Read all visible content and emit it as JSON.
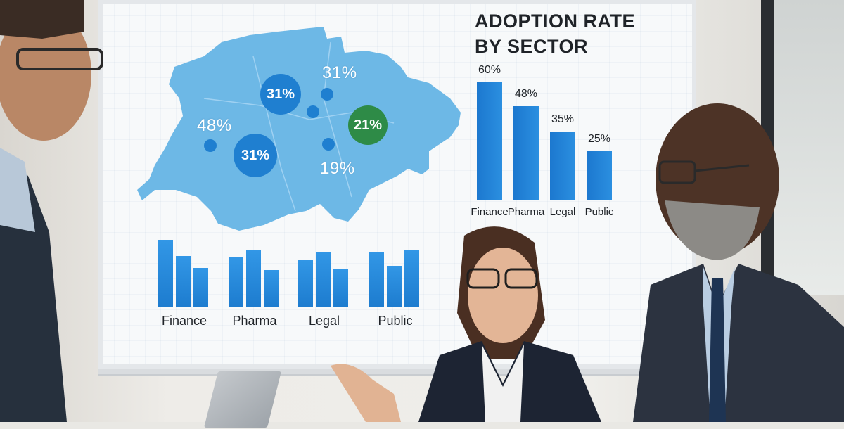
{
  "slide": {
    "title_line1": "ADOPTION RATE",
    "title_line2": "BY SECTOR"
  },
  "map_labels": [
    {
      "text": "31%",
      "style": "text"
    },
    {
      "text": "31%",
      "style": "bubble"
    },
    {
      "text": "48%",
      "style": "text"
    },
    {
      "text": "21%",
      "style": "bubble-green"
    },
    {
      "text": "31%",
      "style": "bubble"
    },
    {
      "text": "19%",
      "style": "text"
    }
  ],
  "chart_data": {
    "type": "bar",
    "title": "ADOPTION RATE BY SECTOR",
    "categories": [
      "Finance",
      "Pharma",
      "Legal",
      "Public"
    ],
    "values": [
      60,
      48,
      35,
      25
    ],
    "value_labels": [
      "60%",
      "48%",
      "35%",
      "25%"
    ],
    "ylim": [
      0,
      60
    ]
  },
  "mini_groups": [
    {
      "label": "Finance",
      "values": [
        95,
        72,
        55
      ]
    },
    {
      "label": "Pharma",
      "values": [
        70,
        80,
        52
      ]
    },
    {
      "label": "Legal",
      "values": [
        67,
        78,
        53
      ]
    },
    {
      "label": "Public",
      "values": [
        78,
        58,
        80
      ]
    }
  ],
  "colors": {
    "map_fill": "#6db8e6",
    "bubble_blue": "#1f7fd0",
    "bubble_green": "#2e8b47",
    "bar_blue": "#1c78cf"
  }
}
